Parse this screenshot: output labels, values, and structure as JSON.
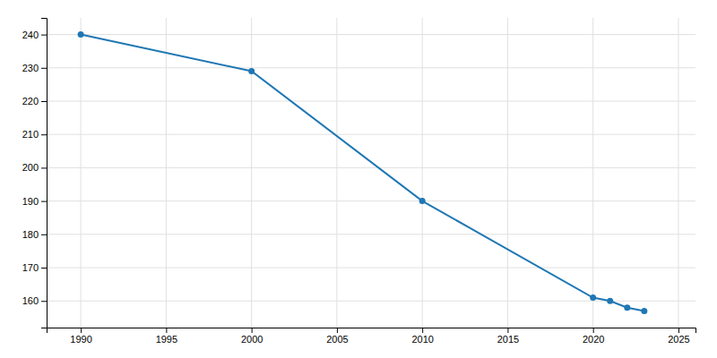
{
  "chart_data": {
    "type": "line",
    "x": [
      1990,
      2000,
      2010,
      2020,
      2021,
      2022,
      2023
    ],
    "values": [
      240,
      229,
      190,
      161,
      160,
      158,
      157
    ],
    "marker": "circle",
    "xlim": [
      1988,
      2026
    ],
    "ylim": [
      152,
      245
    ],
    "xticks": [
      1990,
      1995,
      2000,
      2005,
      2010,
      2015,
      2020,
      2025
    ],
    "yticks": [
      160,
      170,
      180,
      190,
      200,
      210,
      220,
      230,
      240
    ],
    "grid": true
  }
}
